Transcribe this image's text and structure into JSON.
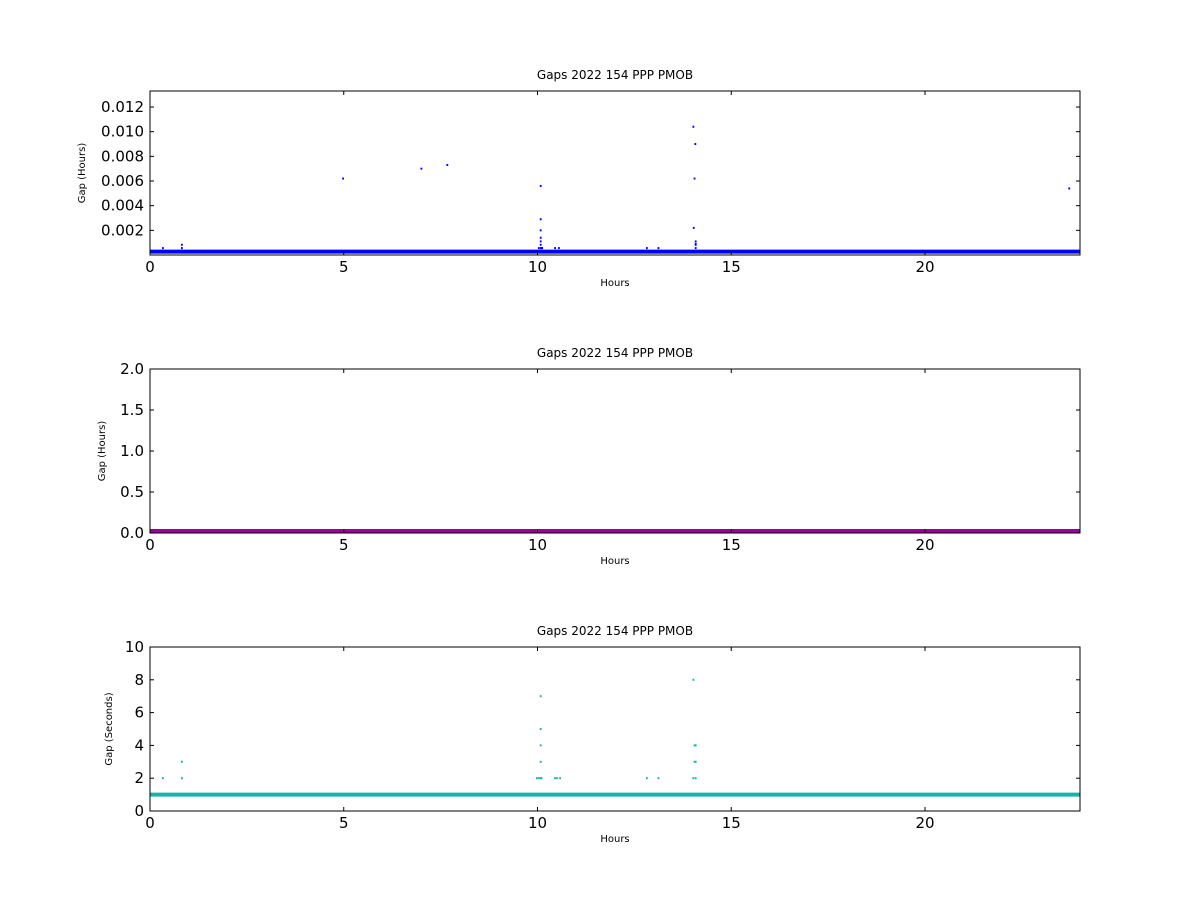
{
  "chart_data": [
    {
      "type": "scatter",
      "title": "Gaps 2022 154 PPP  PMOB",
      "xlabel": "Hours",
      "ylabel": "Gap (Hours)",
      "xlim": [
        0,
        24
      ],
      "ylim": [
        0,
        0.0133
      ],
      "xticks": [
        0,
        5,
        10,
        15,
        20
      ],
      "xtick_labels": [
        "0",
        "5",
        "10",
        "15",
        "20"
      ],
      "yticks": [
        0.002,
        0.004,
        0.006,
        0.008,
        0.01,
        0.012
      ],
      "ytick_labels": [
        "0.002",
        "0.004",
        "0.006",
        "0.008",
        "0.010",
        "0.012"
      ],
      "color": "#0000ff",
      "baseline": {
        "value": 0.000278,
        "x_range": [
          0,
          24
        ]
      },
      "series": [
        {
          "x": [
            0.33,
            0.82,
            0.82,
            4.98,
            7.0,
            7.67,
            10.03,
            10.08,
            10.08,
            10.08,
            10.08,
            10.08,
            10.08,
            10.08,
            10.1,
            10.12,
            10.45,
            10.55,
            12.82,
            13.12,
            14.02,
            14.03,
            14.05,
            14.07,
            14.08,
            14.08,
            14.08,
            14.08,
            23.72
          ],
          "y": [
            0.00056,
            0.00056,
            0.00083,
            0.0062,
            0.007,
            0.0073,
            0.00056,
            0.0056,
            0.0029,
            0.002,
            0.0014,
            0.0011,
            0.00083,
            0.00056,
            0.00056,
            0.00056,
            0.00056,
            0.00056,
            0.00056,
            0.00056,
            0.0104,
            0.0022,
            0.0062,
            0.009,
            0.0011,
            0.00083,
            0.00056,
            0.0009,
            0.0054
          ]
        }
      ]
    },
    {
      "type": "scatter",
      "title": "Gaps 2022 154 PPP  PMOB",
      "xlabel": "Hours",
      "ylabel": "Gap (Hours)",
      "xlim": [
        0,
        24
      ],
      "ylim": [
        0,
        2.0
      ],
      "xticks": [
        0,
        5,
        10,
        15,
        20
      ],
      "xtick_labels": [
        "0",
        "5",
        "10",
        "15",
        "20"
      ],
      "yticks": [
        0.0,
        0.5,
        1.0,
        1.5,
        2.0
      ],
      "ytick_labels": [
        "0.0",
        "0.5",
        "1.0",
        "1.5",
        "2.0"
      ],
      "color": "#990099",
      "baseline": {
        "value": 0.0,
        "x_range": [
          0,
          24
        ]
      },
      "series": [
        {
          "x": [],
          "y": []
        }
      ]
    },
    {
      "type": "scatter",
      "title": "Gaps 2022 154 PPP  PMOB",
      "xlabel": "Hours",
      "ylabel": "Gap (Seconds)",
      "xlim": [
        0,
        24
      ],
      "ylim": [
        0,
        10
      ],
      "xticks": [
        0,
        5,
        10,
        15,
        20
      ],
      "xtick_labels": [
        "0",
        "5",
        "10",
        "15",
        "20"
      ],
      "yticks": [
        0,
        2,
        4,
        6,
        8,
        10
      ],
      "ytick_labels": [
        "0",
        "2",
        "4",
        "6",
        "8",
        "10"
      ],
      "color": "#1ab3a6",
      "baseline": {
        "value": 1,
        "x_range": [
          0,
          24
        ]
      },
      "series": [
        {
          "x": [
            0.33,
            0.82,
            0.82,
            9.98,
            10.03,
            10.08,
            10.08,
            10.08,
            10.08,
            10.08,
            10.1,
            10.45,
            10.5,
            10.58,
            12.82,
            13.12,
            14.02,
            14.02,
            14.05,
            14.08,
            14.05,
            14.08,
            14.08
          ],
          "y": [
            2,
            2,
            3,
            2,
            2,
            7,
            5,
            4,
            3,
            2,
            2,
            2,
            2,
            2,
            2,
            2,
            8,
            2,
            4,
            4,
            3,
            2,
            3
          ]
        }
      ]
    }
  ]
}
